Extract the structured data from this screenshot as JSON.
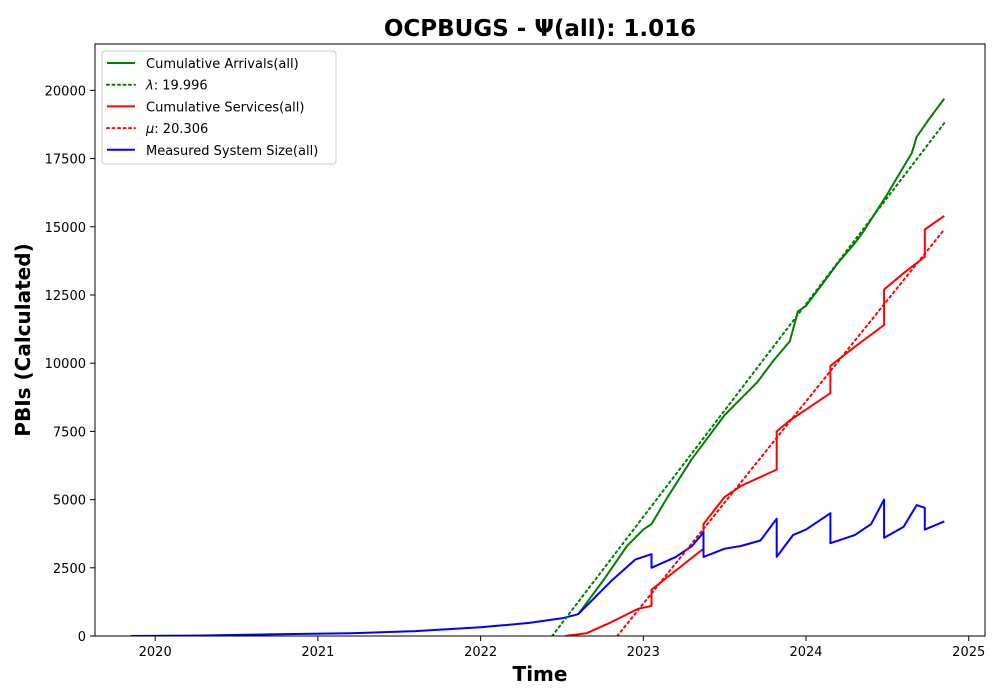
{
  "chart_data": {
    "type": "line",
    "title": "OCPBUGS -  Ψ(all): 1.016",
    "xlabel": "Time",
    "ylabel": "PBIs (Calculated)",
    "xlim": [
      2019.63,
      2025.1
    ],
    "ylim": [
      0,
      21700
    ],
    "x_ticks": [
      2020,
      2021,
      2022,
      2023,
      2024,
      2025
    ],
    "x_tick_labels": [
      "2020",
      "2021",
      "2022",
      "2023",
      "2024",
      "2025"
    ],
    "y_ticks": [
      0,
      2500,
      5000,
      7500,
      10000,
      12500,
      15000,
      17500,
      20000
    ],
    "y_tick_labels": [
      "0",
      "2500",
      "5000",
      "7500",
      "10000",
      "12500",
      "15000",
      "17500",
      "20000"
    ],
    "grid": false,
    "legend_position": "top-left",
    "legend": [
      {
        "name": "Cumulative Arrivals(all)",
        "color": "#008000",
        "style": "solid"
      },
      {
        "prefix": "λ",
        "value": ": 19.996",
        "color": "#008000",
        "style": "dotted"
      },
      {
        "name": "Cumulative Services(all)",
        "color": "#ff0000",
        "style": "solid"
      },
      {
        "prefix": "μ",
        "value": ": 20.306",
        "color": "#ff0000",
        "style": "dotted"
      },
      {
        "name": "Measured System Size(all)",
        "color": "#0000ff",
        "style": "solid"
      }
    ],
    "series": [
      {
        "name": "Cumulative Arrivals(all)",
        "color": "#008000",
        "style": "solid",
        "x": [
          2022.6,
          2022.75,
          2022.9,
          2023.0,
          2023.05,
          2023.15,
          2023.3,
          2023.4,
          2023.5,
          2023.6,
          2023.7,
          2023.8,
          2023.9,
          2023.95,
          2024.0,
          2024.1,
          2024.2,
          2024.3,
          2024.35,
          2024.5,
          2024.6,
          2024.65,
          2024.68,
          2024.75,
          2024.85
        ],
        "y": [
          800,
          2000,
          3300,
          3900,
          4100,
          5100,
          6500,
          7300,
          8100,
          8700,
          9300,
          10100,
          10800,
          11900,
          12100,
          12900,
          13700,
          14400,
          14800,
          16200,
          17200,
          17700,
          18300,
          18900,
          19700
        ]
      },
      {
        "name": "Cumulative Services(all)",
        "color": "#ff0000",
        "style": "solid",
        "x": [
          2022.52,
          2022.65,
          2022.8,
          2022.97,
          2023.05,
          2023.05,
          2023.2,
          2023.37,
          2023.37,
          2023.5,
          2023.6,
          2023.82,
          2023.82,
          2023.9,
          2024.0,
          2024.15,
          2024.15,
          2024.3,
          2024.48,
          2024.48,
          2024.6,
          2024.73,
          2024.73,
          2024.85
        ],
        "y": [
          0,
          100,
          500,
          1000,
          1100,
          1700,
          2400,
          3200,
          4100,
          5100,
          5500,
          6100,
          7500,
          7900,
          8300,
          8900,
          9900,
          10600,
          11400,
          12700,
          13300,
          13900,
          14900,
          15400
        ]
      },
      {
        "name": "Measured System Size(all)",
        "color": "#0000ff",
        "style": "solid",
        "x": [
          2019.85,
          2020.3,
          2020.8,
          2021.2,
          2021.6,
          2022.0,
          2022.3,
          2022.5,
          2022.6,
          2022.8,
          2022.95,
          2023.05,
          2023.05,
          2023.2,
          2023.3,
          2023.37,
          2023.37,
          2023.5,
          2023.6,
          2023.72,
          2023.82,
          2023.82,
          2023.92,
          2024.0,
          2024.1,
          2024.15,
          2024.15,
          2024.3,
          2024.4,
          2024.48,
          2024.48,
          2024.6,
          2024.65,
          2024.68,
          2024.73,
          2024.73,
          2024.85
        ],
        "y": [
          0,
          20,
          70,
          100,
          180,
          320,
          480,
          650,
          800,
          2000,
          2800,
          3000,
          2500,
          2900,
          3300,
          3800,
          2900,
          3200,
          3300,
          3500,
          4300,
          2900,
          3700,
          3900,
          4300,
          4500,
          3400,
          3700,
          4100,
          5000,
          3600,
          4000,
          4500,
          4800,
          4700,
          3900,
          4200
        ]
      },
      {
        "name": "λ: 19.996",
        "color": "#008000",
        "style": "dotted",
        "x": [
          2022.44,
          2024.85
        ],
        "y": [
          0,
          18800
        ]
      },
      {
        "name": "μ: 20.306",
        "color": "#ff0000",
        "style": "dotted",
        "x": [
          2022.84,
          2024.85
        ],
        "y": [
          0,
          14900
        ]
      }
    ]
  }
}
